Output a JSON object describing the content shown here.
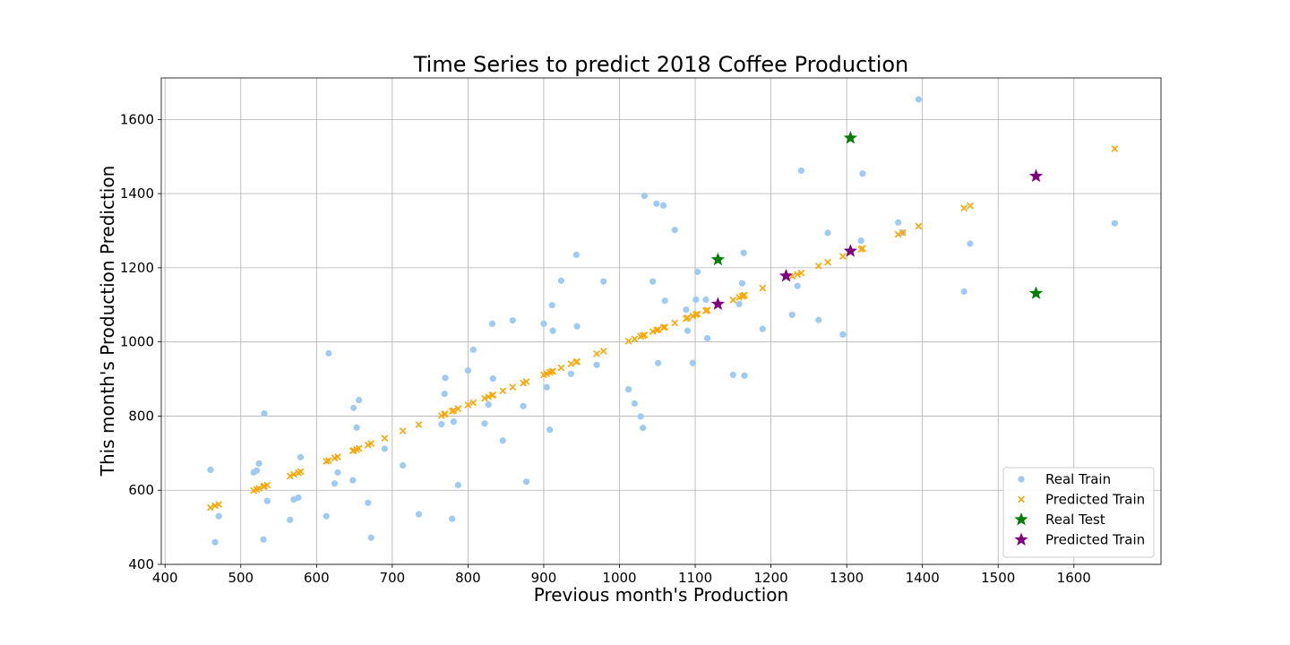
{
  "chart_data": {
    "type": "scatter",
    "title": "Time Series to predict 2018 Coffee Production",
    "xlabel": "Previous month's Production",
    "ylabel": "This month's Production Prediction",
    "xlim": [
      395,
      1715
    ],
    "ylim": [
      400,
      1712
    ],
    "xticks": [
      400,
      500,
      600,
      700,
      800,
      900,
      1000,
      1100,
      1200,
      1300,
      1400,
      1500,
      1600
    ],
    "yticks": [
      400,
      600,
      800,
      1000,
      1200,
      1400,
      1600
    ],
    "grid": true,
    "legend_position": "lower-right",
    "series": [
      {
        "name": "Real Train",
        "marker": "circle",
        "color": "#9ecbf5",
        "points": [
          [
            460,
            655
          ],
          [
            466,
            460
          ],
          [
            471,
            530
          ],
          [
            517,
            648
          ],
          [
            521,
            653
          ],
          [
            524,
            672
          ],
          [
            530,
            467
          ],
          [
            531,
            807
          ],
          [
            535,
            571
          ],
          [
            565,
            520
          ],
          [
            570,
            575
          ],
          [
            576,
            580
          ],
          [
            579,
            689
          ],
          [
            613,
            530
          ],
          [
            616,
            969
          ],
          [
            624,
            618
          ],
          [
            628,
            648
          ],
          [
            648,
            627
          ],
          [
            649,
            822
          ],
          [
            653,
            769
          ],
          [
            656,
            843
          ],
          [
            668,
            566
          ],
          [
            672,
            472
          ],
          [
            690,
            712
          ],
          [
            714,
            667
          ],
          [
            735,
            535
          ],
          [
            765,
            778
          ],
          [
            769,
            860
          ],
          [
            770,
            903
          ],
          [
            779,
            523
          ],
          [
            781,
            785
          ],
          [
            787,
            614
          ],
          [
            800,
            923
          ],
          [
            807,
            979
          ],
          [
            822,
            780
          ],
          [
            827,
            831
          ],
          [
            832,
            1049
          ],
          [
            833,
            901
          ],
          [
            846,
            734
          ],
          [
            859,
            1058
          ],
          [
            873,
            827
          ],
          [
            877,
            623
          ],
          [
            900,
            1049
          ],
          [
            904,
            878
          ],
          [
            908,
            763
          ],
          [
            911,
            1099
          ],
          [
            912,
            1030
          ],
          [
            923,
            1165
          ],
          [
            936,
            914
          ],
          [
            943,
            1235
          ],
          [
            944,
            1042
          ],
          [
            970,
            938
          ],
          [
            979,
            1163
          ],
          [
            1012,
            872
          ],
          [
            1020,
            834
          ],
          [
            1028,
            799
          ],
          [
            1031,
            768
          ],
          [
            1033,
            1394
          ],
          [
            1044,
            1163
          ],
          [
            1049,
            1373
          ],
          [
            1051,
            943
          ],
          [
            1058,
            1368
          ],
          [
            1060,
            1111
          ],
          [
            1073,
            1302
          ],
          [
            1088,
            1087
          ],
          [
            1090,
            1030
          ],
          [
            1097,
            943
          ],
          [
            1101,
            1114
          ],
          [
            1103,
            1189
          ],
          [
            1114,
            1114
          ],
          [
            1116,
            1010
          ],
          [
            1150,
            911
          ],
          [
            1158,
            1102
          ],
          [
            1162,
            1158
          ],
          [
            1164,
            1240
          ],
          [
            1165,
            909
          ],
          [
            1189,
            1035
          ],
          [
            1228,
            1073
          ],
          [
            1235,
            1151
          ],
          [
            1240,
            1462
          ],
          [
            1263,
            1059
          ],
          [
            1275,
            1294
          ],
          [
            1295,
            1020
          ],
          [
            1319,
            1273
          ],
          [
            1321,
            1454
          ],
          [
            1368,
            1322
          ],
          [
            1374,
            1295
          ],
          [
            1395,
            1654
          ],
          [
            1455,
            1136
          ],
          [
            1463,
            1265
          ],
          [
            1654,
            1320
          ]
        ]
      },
      {
        "name": "Predicted Train",
        "marker": "x",
        "color": "#ffa500",
        "points": [
          [
            460,
            553
          ],
          [
            466,
            558
          ],
          [
            471,
            562
          ],
          [
            517,
            599
          ],
          [
            521,
            602
          ],
          [
            524,
            605
          ],
          [
            530,
            610
          ],
          [
            531,
            611
          ],
          [
            535,
            614
          ],
          [
            565,
            638
          ],
          [
            570,
            643
          ],
          [
            576,
            647
          ],
          [
            579,
            650
          ],
          [
            613,
            678
          ],
          [
            616,
            680
          ],
          [
            624,
            687
          ],
          [
            628,
            690
          ],
          [
            648,
            706
          ],
          [
            649,
            707
          ],
          [
            653,
            710
          ],
          [
            656,
            713
          ],
          [
            668,
            722
          ],
          [
            672,
            726
          ],
          [
            690,
            740
          ],
          [
            714,
            760
          ],
          [
            735,
            777
          ],
          [
            765,
            801
          ],
          [
            769,
            805
          ],
          [
            770,
            806
          ],
          [
            779,
            813
          ],
          [
            781,
            815
          ],
          [
            787,
            820
          ],
          [
            800,
            830
          ],
          [
            807,
            836
          ],
          [
            822,
            848
          ],
          [
            827,
            852
          ],
          [
            832,
            856
          ],
          [
            833,
            857
          ],
          [
            846,
            868
          ],
          [
            859,
            878
          ],
          [
            873,
            889
          ],
          [
            877,
            893
          ],
          [
            900,
            911
          ],
          [
            904,
            914
          ],
          [
            908,
            918
          ],
          [
            911,
            920
          ],
          [
            912,
            921
          ],
          [
            923,
            930
          ],
          [
            936,
            941
          ],
          [
            943,
            946
          ],
          [
            944,
            947
          ],
          [
            970,
            968
          ],
          [
            979,
            975
          ],
          [
            1012,
            1002
          ],
          [
            1020,
            1008
          ],
          [
            1028,
            1015
          ],
          [
            1031,
            1017
          ],
          [
            1033,
            1019
          ],
          [
            1044,
            1028
          ],
          [
            1049,
            1032
          ],
          [
            1051,
            1033
          ],
          [
            1058,
            1039
          ],
          [
            1060,
            1040
          ],
          [
            1073,
            1051
          ],
          [
            1088,
            1063
          ],
          [
            1090,
            1065
          ],
          [
            1097,
            1070
          ],
          [
            1101,
            1074
          ],
          [
            1103,
            1075
          ],
          [
            1114,
            1084
          ],
          [
            1116,
            1086
          ],
          [
            1150,
            1113
          ],
          [
            1158,
            1120
          ],
          [
            1162,
            1123
          ],
          [
            1164,
            1125
          ],
          [
            1165,
            1126
          ],
          [
            1189,
            1145
          ],
          [
            1228,
            1177
          ],
          [
            1235,
            1182
          ],
          [
            1240,
            1186
          ],
          [
            1263,
            1205
          ],
          [
            1275,
            1215
          ],
          [
            1295,
            1231
          ],
          [
            1319,
            1250
          ],
          [
            1321,
            1252
          ],
          [
            1368,
            1290
          ],
          [
            1374,
            1295
          ],
          [
            1395,
            1312
          ],
          [
            1455,
            1361
          ],
          [
            1463,
            1367
          ],
          [
            1654,
            1521
          ]
        ]
      },
      {
        "name": "Real Test",
        "marker": "star",
        "color": "#008000",
        "points": [
          [
            1130,
            1222
          ],
          [
            1305,
            1550
          ],
          [
            1550,
            1131
          ]
        ]
      },
      {
        "name": "Predicted Train",
        "marker": "star",
        "color": "#800080",
        "points": [
          [
            1130,
            1102
          ],
          [
            1220,
            1178
          ],
          [
            1305,
            1245
          ],
          [
            1550,
            1447
          ]
        ]
      }
    ]
  }
}
